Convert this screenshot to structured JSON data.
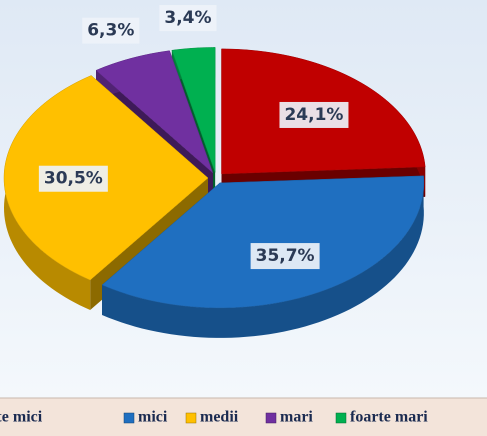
{
  "chart_data": {
    "type": "pie",
    "categories": [
      "foarte mici",
      "mici",
      "medii",
      "mari",
      "foarte mari"
    ],
    "values": [
      24.1,
      35.7,
      30.5,
      6.3,
      3.4
    ],
    "value_labels": [
      "24,1%",
      "35,7%",
      "30,5%",
      "6,3%",
      "3,4%"
    ],
    "colors": [
      "#c00000",
      "#1f6fc0",
      "#ffc000",
      "#7030a0",
      "#00b050"
    ],
    "legend": "bottom"
  }
}
